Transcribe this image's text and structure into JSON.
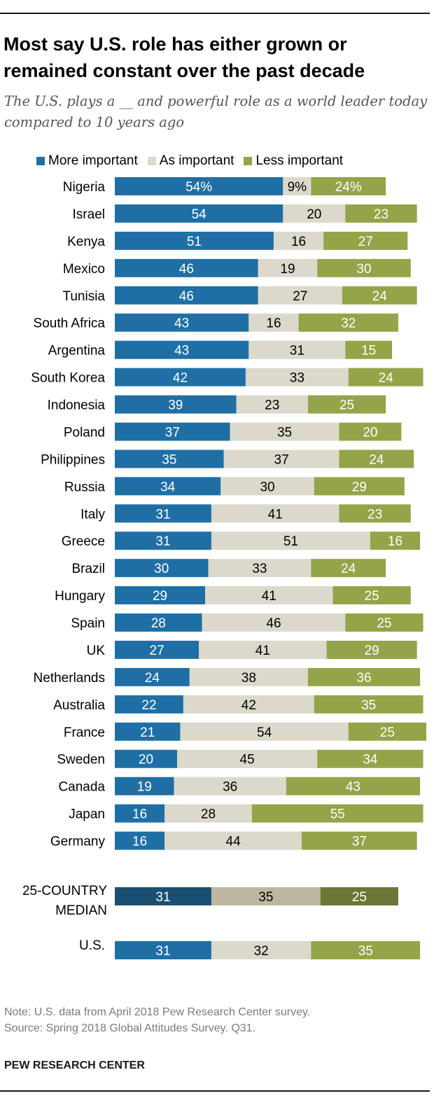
{
  "chart_data": {
    "type": "bar",
    "orientation": "horizontal",
    "stacked": true,
    "title": "Most say U.S. role has either grown or remained constant over the past decade",
    "subtitle": "The U.S. plays a __ and powerful role as a world leader today compared to 10 years ago",
    "xlim": [
      0,
      100
    ],
    "series": [
      {
        "name": "More important",
        "color": "#1f6fa5"
      },
      {
        "name": "As important",
        "color": "#dcd8cb"
      },
      {
        "name": "Less important",
        "color": "#94a449"
      }
    ],
    "rows": [
      {
        "label": "Nigeria",
        "values": [
          54,
          9,
          24
        ],
        "labels": [
          "54%",
          "9%",
          "24%"
        ]
      },
      {
        "label": "Israel",
        "values": [
          54,
          20,
          23
        ]
      },
      {
        "label": "Kenya",
        "values": [
          51,
          16,
          27
        ]
      },
      {
        "label": "Mexico",
        "values": [
          46,
          19,
          30
        ]
      },
      {
        "label": "Tunisia",
        "values": [
          46,
          27,
          24
        ]
      },
      {
        "label": "South Africa",
        "values": [
          43,
          16,
          32
        ]
      },
      {
        "label": "Argentina",
        "values": [
          43,
          31,
          15
        ]
      },
      {
        "label": "South Korea",
        "values": [
          42,
          33,
          24
        ]
      },
      {
        "label": "Indonesia",
        "values": [
          39,
          23,
          25
        ]
      },
      {
        "label": "Poland",
        "values": [
          37,
          35,
          20
        ]
      },
      {
        "label": "Philippines",
        "values": [
          35,
          37,
          24
        ]
      },
      {
        "label": "Russia",
        "values": [
          34,
          30,
          29
        ]
      },
      {
        "label": "Italy",
        "values": [
          31,
          41,
          23
        ]
      },
      {
        "label": "Greece",
        "values": [
          31,
          51,
          16
        ]
      },
      {
        "label": "Brazil",
        "values": [
          30,
          33,
          24
        ]
      },
      {
        "label": "Hungary",
        "values": [
          29,
          41,
          25
        ]
      },
      {
        "label": "Spain",
        "values": [
          28,
          46,
          25
        ]
      },
      {
        "label": "UK",
        "values": [
          27,
          41,
          29
        ]
      },
      {
        "label": "Netherlands",
        "values": [
          24,
          38,
          36
        ]
      },
      {
        "label": "Australia",
        "values": [
          22,
          42,
          35
        ]
      },
      {
        "label": "France",
        "values": [
          21,
          54,
          25
        ]
      },
      {
        "label": "Sweden",
        "values": [
          20,
          45,
          34
        ]
      },
      {
        "label": "Canada",
        "values": [
          19,
          36,
          43
        ]
      },
      {
        "label": "Japan",
        "values": [
          16,
          28,
          55
        ]
      },
      {
        "label": "Germany",
        "values": [
          16,
          44,
          37
        ]
      }
    ],
    "median": {
      "label_lines": [
        "25-COUNTRY",
        "MEDIAN"
      ],
      "values": [
        31,
        35,
        25
      ],
      "colors": [
        "#1a4f72",
        "#bdb7a1",
        "#6a7736"
      ]
    },
    "us": {
      "label": "U.S.",
      "values": [
        31,
        32,
        35
      ]
    }
  },
  "note": "Note: U.S. data from April 2018 Pew Research Center survey.",
  "source": "Source: Spring 2018 Global Attitudes Survey. Q31.",
  "brand": "PEW RESEARCH CENTER"
}
